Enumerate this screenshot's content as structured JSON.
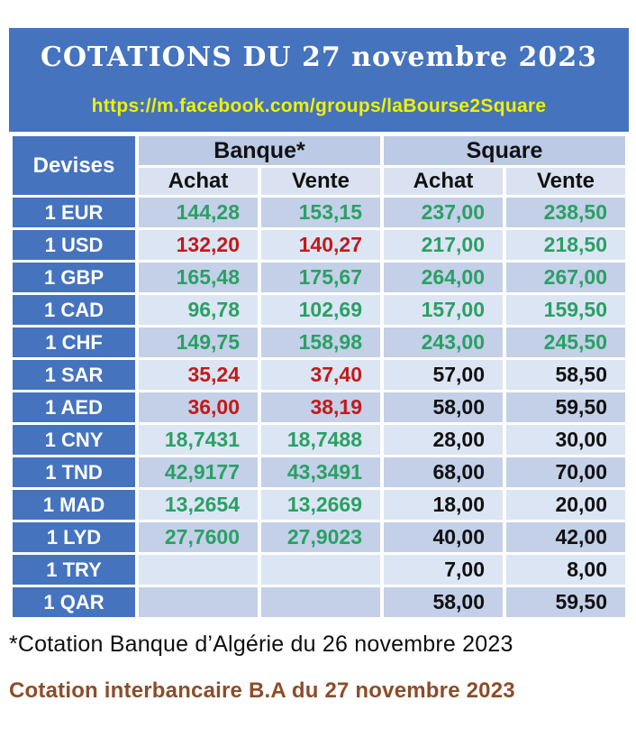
{
  "header": {
    "title": "COTATIONS DU 27 novembre 2023",
    "url": "https://m.facebook.com/groups/laBourse2Square"
  },
  "table": {
    "devises_label": "Devises",
    "groups": [
      {
        "label": "Banque*"
      },
      {
        "label": "Square"
      }
    ],
    "subheaders": [
      "Achat",
      "Vente",
      "Achat",
      "Vente"
    ],
    "rows": [
      {
        "devise": "1 EUR",
        "values": [
          {
            "text": "144,28",
            "trend": "up"
          },
          {
            "text": "153,15",
            "trend": "up"
          },
          {
            "text": "237,00",
            "trend": "up"
          },
          {
            "text": "238,50",
            "trend": "up"
          }
        ]
      },
      {
        "devise": "1 USD",
        "values": [
          {
            "text": "132,20",
            "trend": "down"
          },
          {
            "text": "140,27",
            "trend": "down"
          },
          {
            "text": "217,00",
            "trend": "up"
          },
          {
            "text": "218,50",
            "trend": "up"
          }
        ]
      },
      {
        "devise": "1 GBP",
        "values": [
          {
            "text": "165,48",
            "trend": "up"
          },
          {
            "text": "175,67",
            "trend": "up"
          },
          {
            "text": "264,00",
            "trend": "up"
          },
          {
            "text": "267,00",
            "trend": "up"
          }
        ]
      },
      {
        "devise": "1 CAD",
        "values": [
          {
            "text": "96,78",
            "trend": "up"
          },
          {
            "text": "102,69",
            "trend": "up"
          },
          {
            "text": "157,00",
            "trend": "up"
          },
          {
            "text": "159,50",
            "trend": "up"
          }
        ]
      },
      {
        "devise": "1 CHF",
        "values": [
          {
            "text": "149,75",
            "trend": "up"
          },
          {
            "text": "158,98",
            "trend": "up"
          },
          {
            "text": "243,00",
            "trend": "up"
          },
          {
            "text": "245,50",
            "trend": "up"
          }
        ]
      },
      {
        "devise": "1 SAR",
        "values": [
          {
            "text": "35,24",
            "trend": "down"
          },
          {
            "text": "37,40",
            "trend": "down"
          },
          {
            "text": "57,00",
            "trend": "flat"
          },
          {
            "text": "58,50",
            "trend": "flat"
          }
        ]
      },
      {
        "devise": "1 AED",
        "values": [
          {
            "text": "36,00",
            "trend": "down"
          },
          {
            "text": "38,19",
            "trend": "down"
          },
          {
            "text": "58,00",
            "trend": "flat"
          },
          {
            "text": "59,50",
            "trend": "flat"
          }
        ]
      },
      {
        "devise": "1 CNY",
        "values": [
          {
            "text": "18,7431",
            "trend": "up"
          },
          {
            "text": "18,7488",
            "trend": "up"
          },
          {
            "text": "28,00",
            "trend": "flat"
          },
          {
            "text": "30,00",
            "trend": "flat"
          }
        ]
      },
      {
        "devise": "1 TND",
        "values": [
          {
            "text": "42,9177",
            "trend": "up"
          },
          {
            "text": "43,3491",
            "trend": "up"
          },
          {
            "text": "68,00",
            "trend": "flat"
          },
          {
            "text": "70,00",
            "trend": "flat"
          }
        ]
      },
      {
        "devise": "1 MAD",
        "values": [
          {
            "text": "13,2654",
            "trend": "up"
          },
          {
            "text": "13,2669",
            "trend": "up"
          },
          {
            "text": "18,00",
            "trend": "flat"
          },
          {
            "text": "20,00",
            "trend": "flat"
          }
        ]
      },
      {
        "devise": "1 LYD",
        "values": [
          {
            "text": "27,7600",
            "trend": "up"
          },
          {
            "text": "27,9023",
            "trend": "up"
          },
          {
            "text": "40,00",
            "trend": "flat"
          },
          {
            "text": "42,00",
            "trend": "flat"
          }
        ]
      },
      {
        "devise": "1 TRY",
        "values": [
          {
            "text": "",
            "trend": ""
          },
          {
            "text": "",
            "trend": ""
          },
          {
            "text": "7,00",
            "trend": "flat"
          },
          {
            "text": "8,00",
            "trend": "flat"
          }
        ]
      },
      {
        "devise": "1 QAR",
        "values": [
          {
            "text": "",
            "trend": ""
          },
          {
            "text": "",
            "trend": ""
          },
          {
            "text": "58,00",
            "trend": "flat"
          },
          {
            "text": "59,50",
            "trend": "flat"
          }
        ]
      }
    ]
  },
  "footnotes": {
    "bank_note": "*Cotation Banque d’Algérie du 26 novembre 2023",
    "interbank_note": "Cotation interbancaire B.A du 27 novembre 2023"
  },
  "colors": {
    "accent_blue": "#4573BE",
    "row_dark": "#C3D0E8",
    "row_light": "#DCE5F3",
    "header_group_bg": "#BCCAE6",
    "header_sub_bg": "#DAE2F2",
    "value_up_green": "#2AA064",
    "value_down_red": "#C11A1A",
    "value_neutral": "#111111",
    "url_yellow": "#F0F000",
    "note_brown": "#8C4D28"
  }
}
